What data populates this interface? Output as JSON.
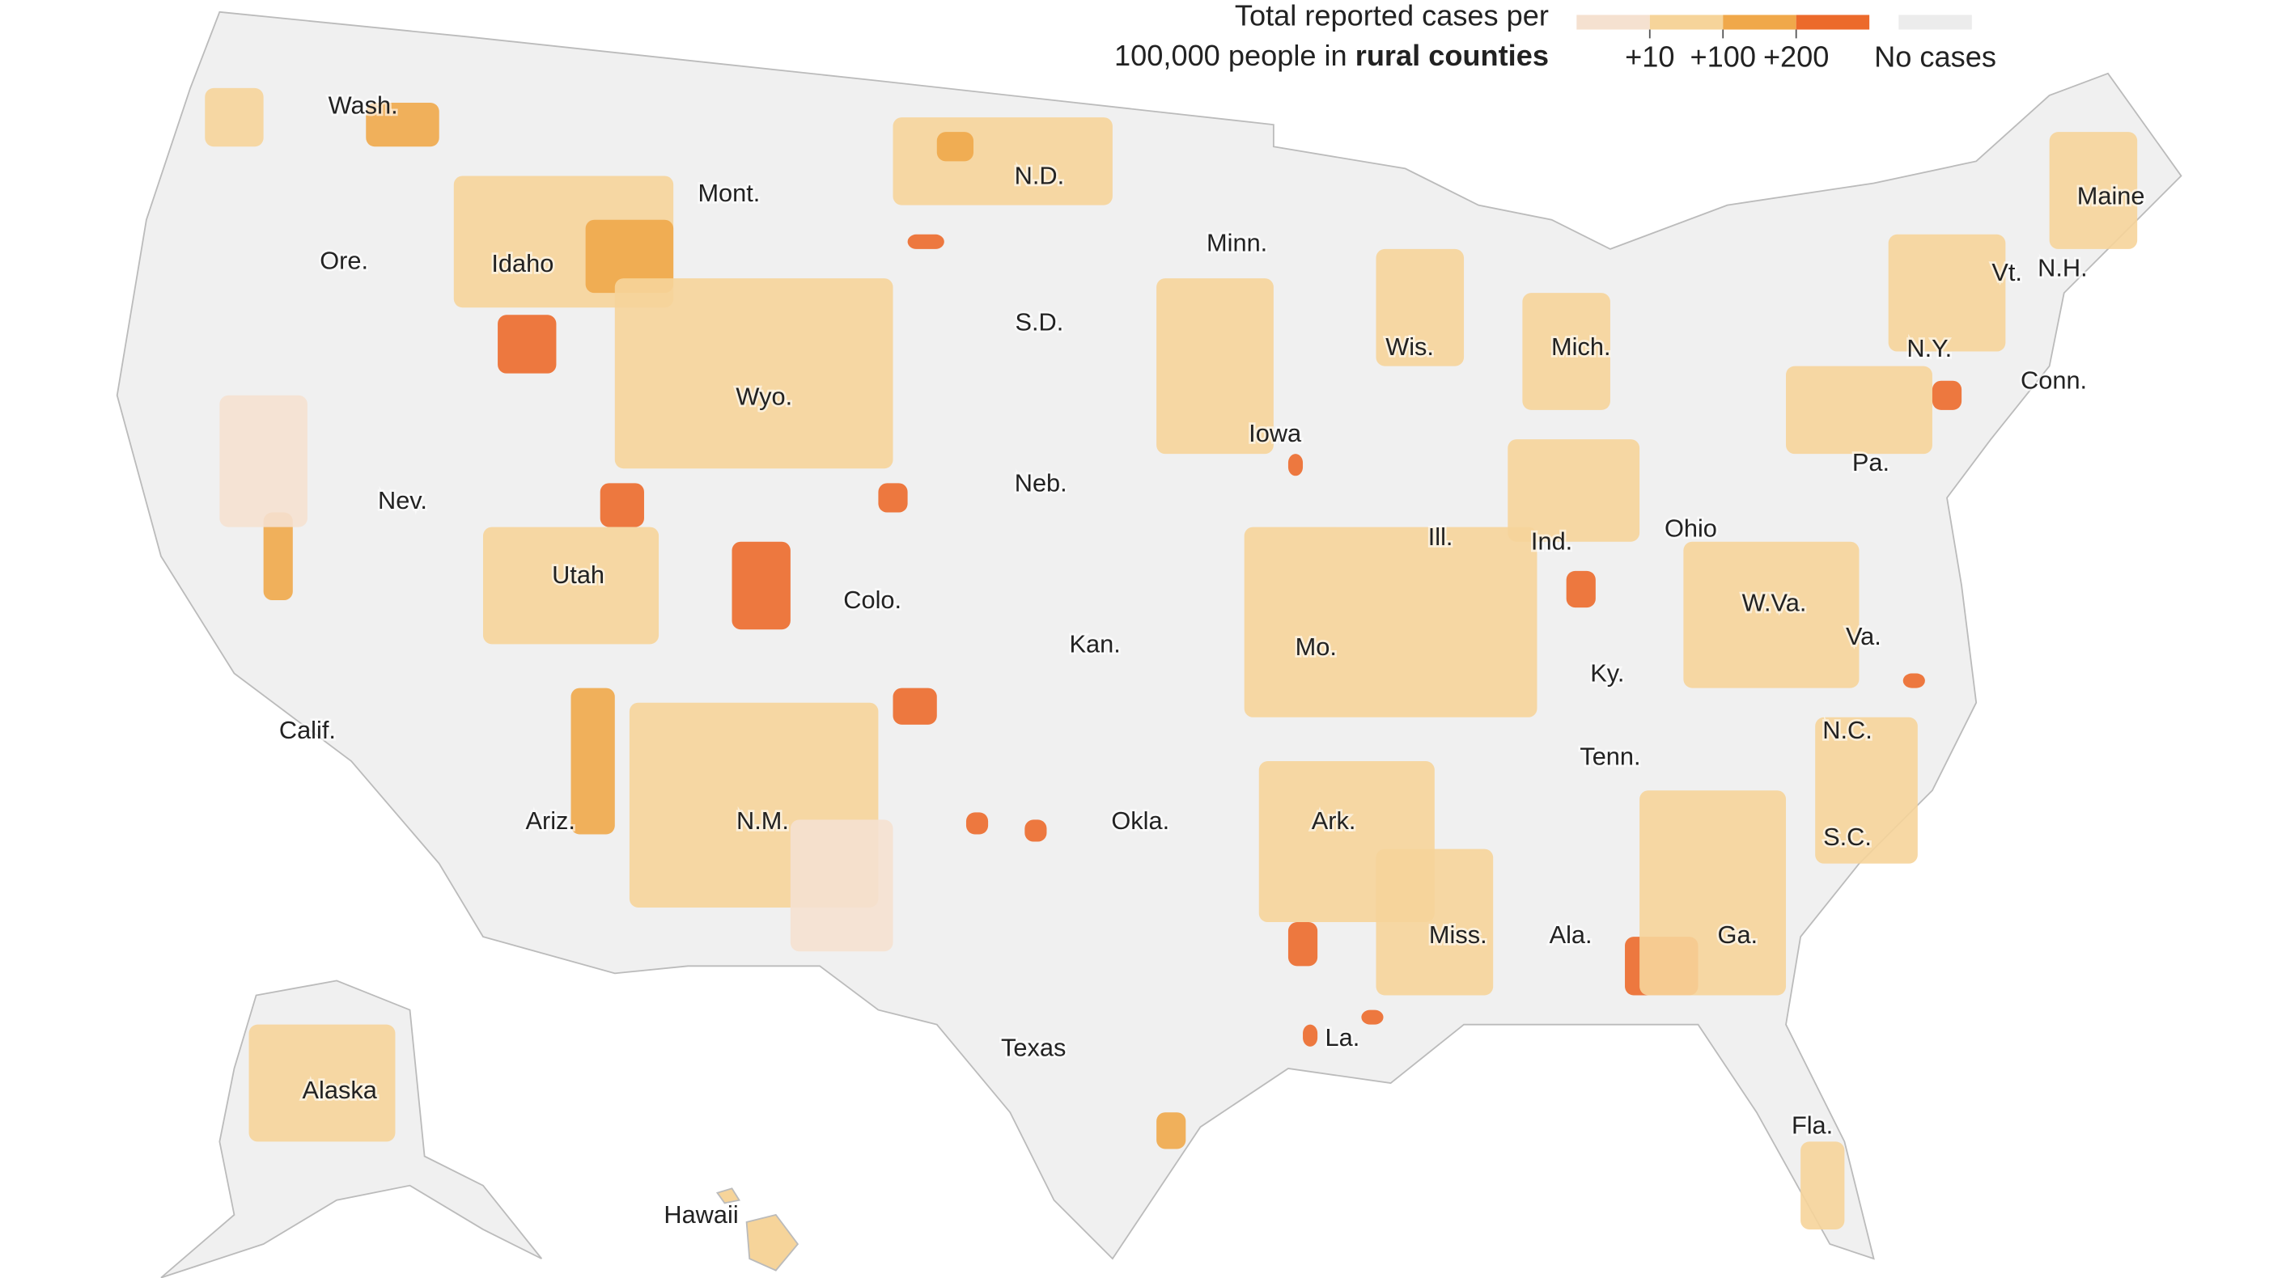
{
  "legend": {
    "title_line1": "Total reported cases per",
    "title_line2_prefix": "100,000 people in",
    "title_line2_bold": "rural counties",
    "colors": [
      "#f5e1d0",
      "#f6d49a",
      "#f0a84a",
      "#ec6a2b"
    ],
    "no_cases_color": "#ececec",
    "ticks": [
      {
        "value": 10,
        "label": "+10"
      },
      {
        "value": 100,
        "label": "+100"
      },
      {
        "value": 200,
        "label": "+200"
      }
    ],
    "no_cases_label": "No cases"
  },
  "state_labels": [
    "Wash.",
    "Mont.",
    "N.D.",
    "Minn.",
    "Maine",
    "Ore.",
    "Idaho",
    "Vt.",
    "N.H.",
    "S.D.",
    "Wis.",
    "Mich.",
    "N.Y.",
    "Conn.",
    "Wyo.",
    "Iowa",
    "Pa.",
    "Neb.",
    "Nev.",
    "Ill.",
    "Ind.",
    "Ohio",
    "Utah",
    "Colo.",
    "W.Va.",
    "Va.",
    "Kan.",
    "Mo.",
    "Ky.",
    "Calif.",
    "N.C.",
    "Tenn.",
    "Ark.",
    "Okla.",
    "N.M.",
    "Ariz.",
    "S.C.",
    "Miss.",
    "Ala.",
    "Ga.",
    "La.",
    "Texas",
    "Fla.",
    "Alaska",
    "Hawaii"
  ]
}
